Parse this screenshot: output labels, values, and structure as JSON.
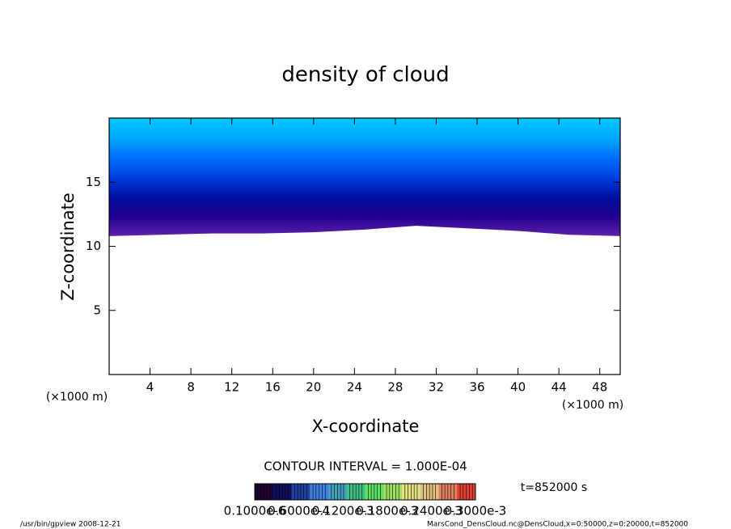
{
  "chart_data": {
    "type": "contour",
    "title": "density of cloud",
    "xlabel": "X-coordinate",
    "ylabel": "Z-coordinate",
    "xunit": "(×1000 m)",
    "yunit": "(×1000 m)",
    "xlim": [
      0,
      50
    ],
    "ylim": [
      0,
      20
    ],
    "xticks": [
      4,
      8,
      12,
      16,
      20,
      24,
      28,
      32,
      36,
      40,
      44,
      48
    ],
    "yticks": [
      5,
      10,
      15
    ],
    "x": [
      0,
      5,
      10,
      15,
      20,
      25,
      30,
      35,
      40,
      45,
      50
    ],
    "cloud_base": [
      10.8,
      10.9,
      11.0,
      11.0,
      11.1,
      11.3,
      11.6,
      11.4,
      11.2,
      10.9,
      10.8
    ],
    "fill_colors": [
      "#00c8ff",
      "#00a8ff",
      "#0070ff",
      "#0040e0",
      "#0010a0",
      "#200090",
      "#6020a8"
    ],
    "contour_interval": "CONTOUR INTERVAL = 1.000E-04",
    "time": "t=852000 s",
    "colorbar_colors": [
      "#200030",
      "#101060",
      "#2040a0",
      "#4080e0",
      "#40a0c0",
      "#40c080",
      "#60e060",
      "#a0e060",
      "#e0e080",
      "#e0c080",
      "#e08060",
      "#e04030"
    ],
    "colorbar_labels": [
      "0.1000e-6",
      "0.6000e-4",
      "0.1200e-3",
      "0.1800e-3",
      "0.2400e-3",
      "0.3000e-3"
    ],
    "footer_left": "/usr/bin/gpview   2008-12-21",
    "footer_right": "MarsCond_DensCloud.nc@DensCloud,x=0:50000,z=0:20000,t=852000"
  }
}
